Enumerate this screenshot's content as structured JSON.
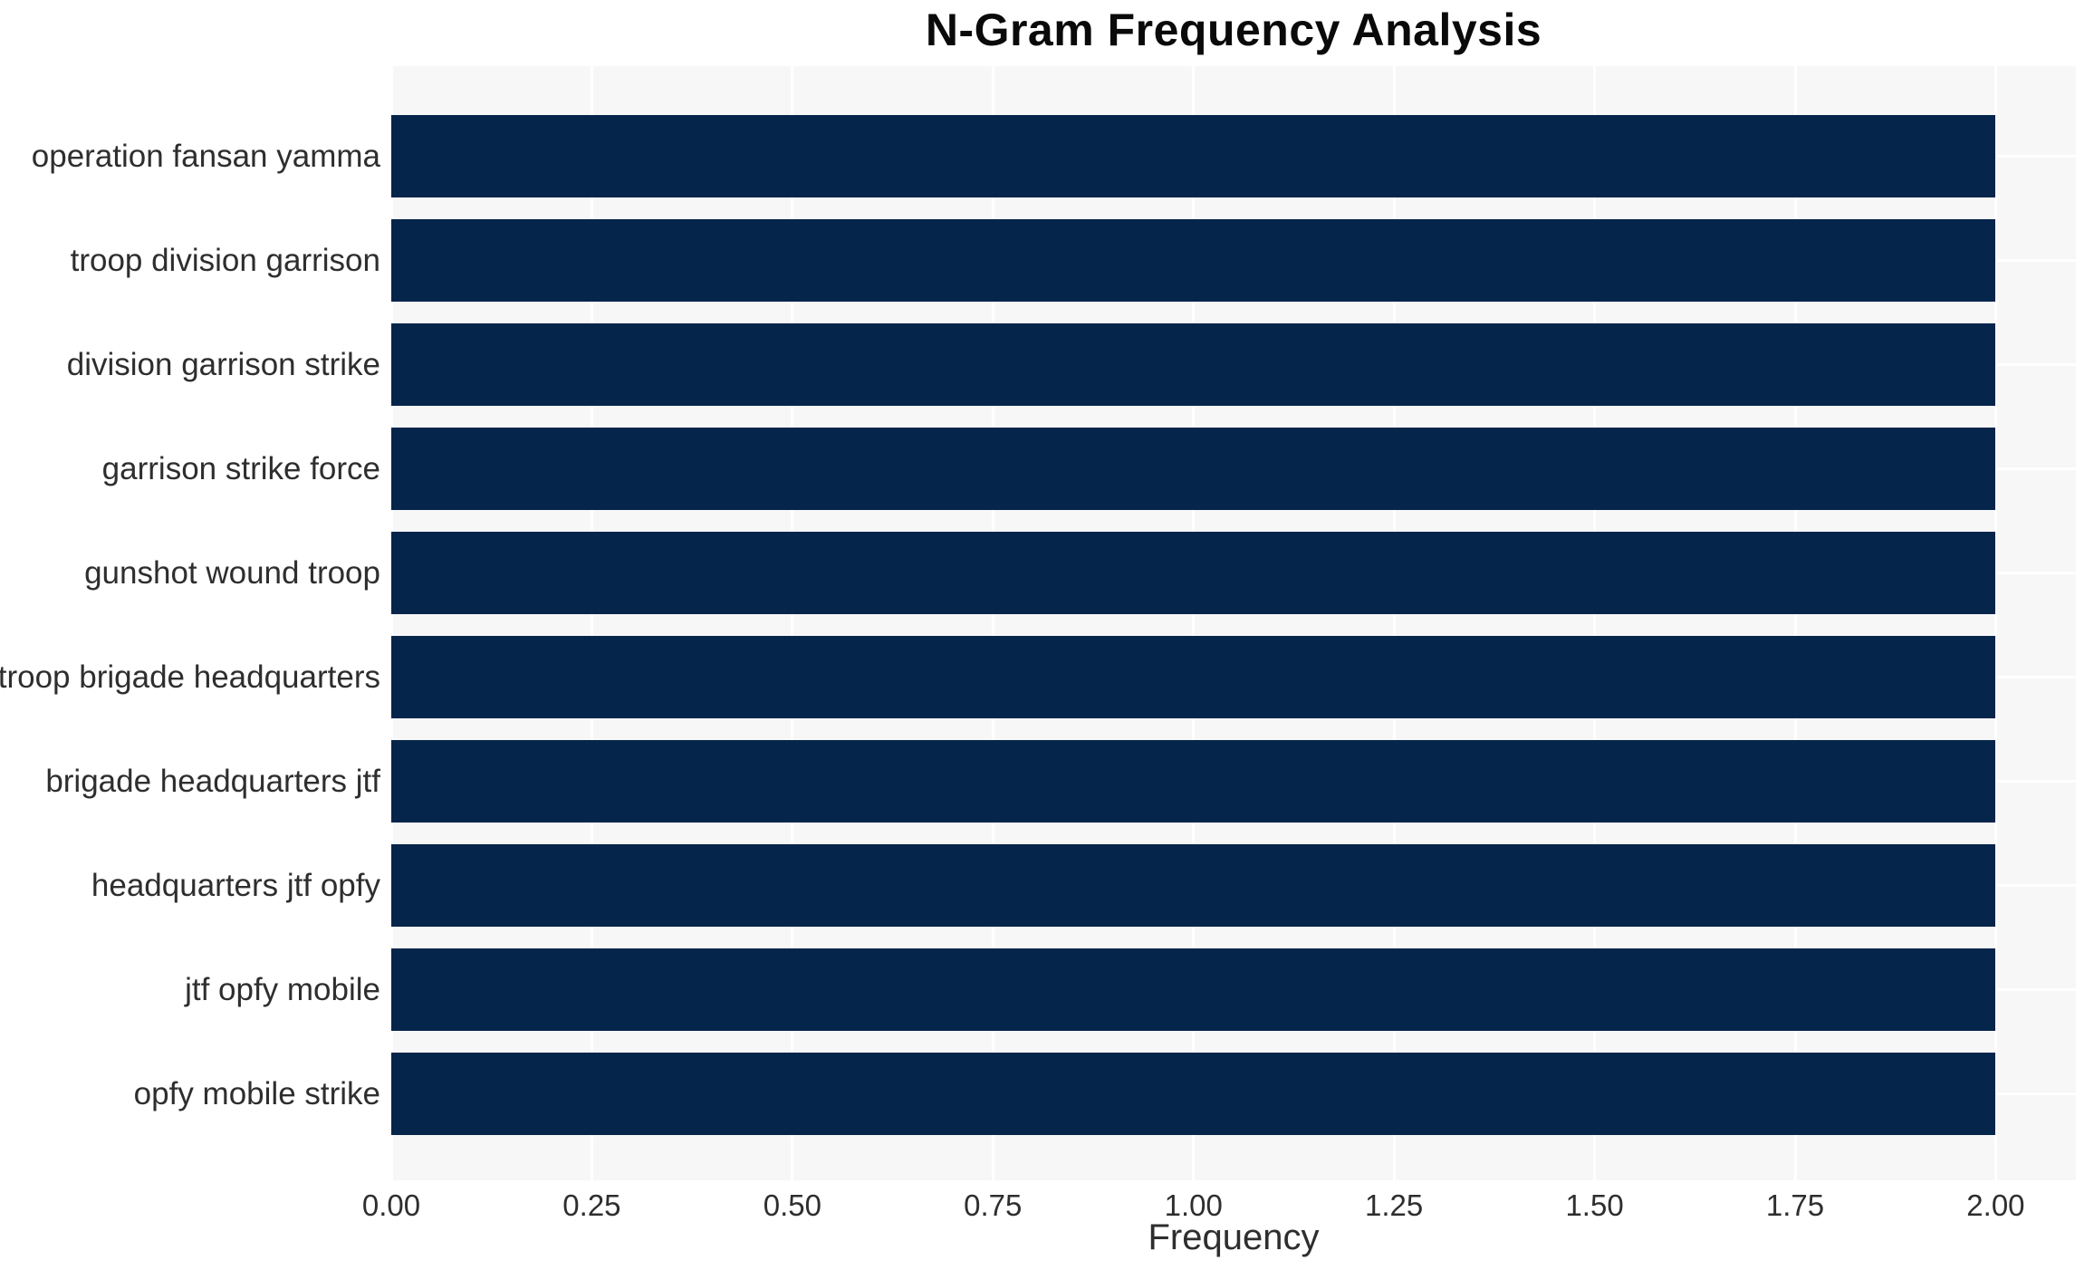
{
  "chart_data": {
    "type": "bar",
    "orientation": "horizontal",
    "title": "N-Gram Frequency Analysis",
    "xlabel": "Frequency",
    "ylabel": "",
    "categories": [
      "operation fansan yamma",
      "troop division garrison",
      "division garrison strike",
      "garrison strike force",
      "gunshot wound troop",
      "troop brigade headquarters",
      "brigade headquarters jtf",
      "headquarters jtf opfy",
      "jtf opfy mobile",
      "opfy mobile strike"
    ],
    "values": [
      2,
      2,
      2,
      2,
      2,
      2,
      2,
      2,
      2,
      2
    ],
    "xlim": [
      0,
      2.1
    ],
    "xticks": [
      0,
      0.25,
      0.5,
      0.75,
      1.0,
      1.25,
      1.5,
      1.75,
      2.0
    ],
    "xtick_labels": [
      "0.00",
      "0.25",
      "0.50",
      "0.75",
      "1.00",
      "1.25",
      "1.50",
      "1.75",
      "2.00"
    ],
    "grid": true,
    "legend": false,
    "colors": {
      "bar": "#06254b",
      "plot_background": "#f7f7f8",
      "gridline": "#ffffff",
      "title_text": "#0a0a0a",
      "tick_text": "#2e2e2e"
    }
  }
}
